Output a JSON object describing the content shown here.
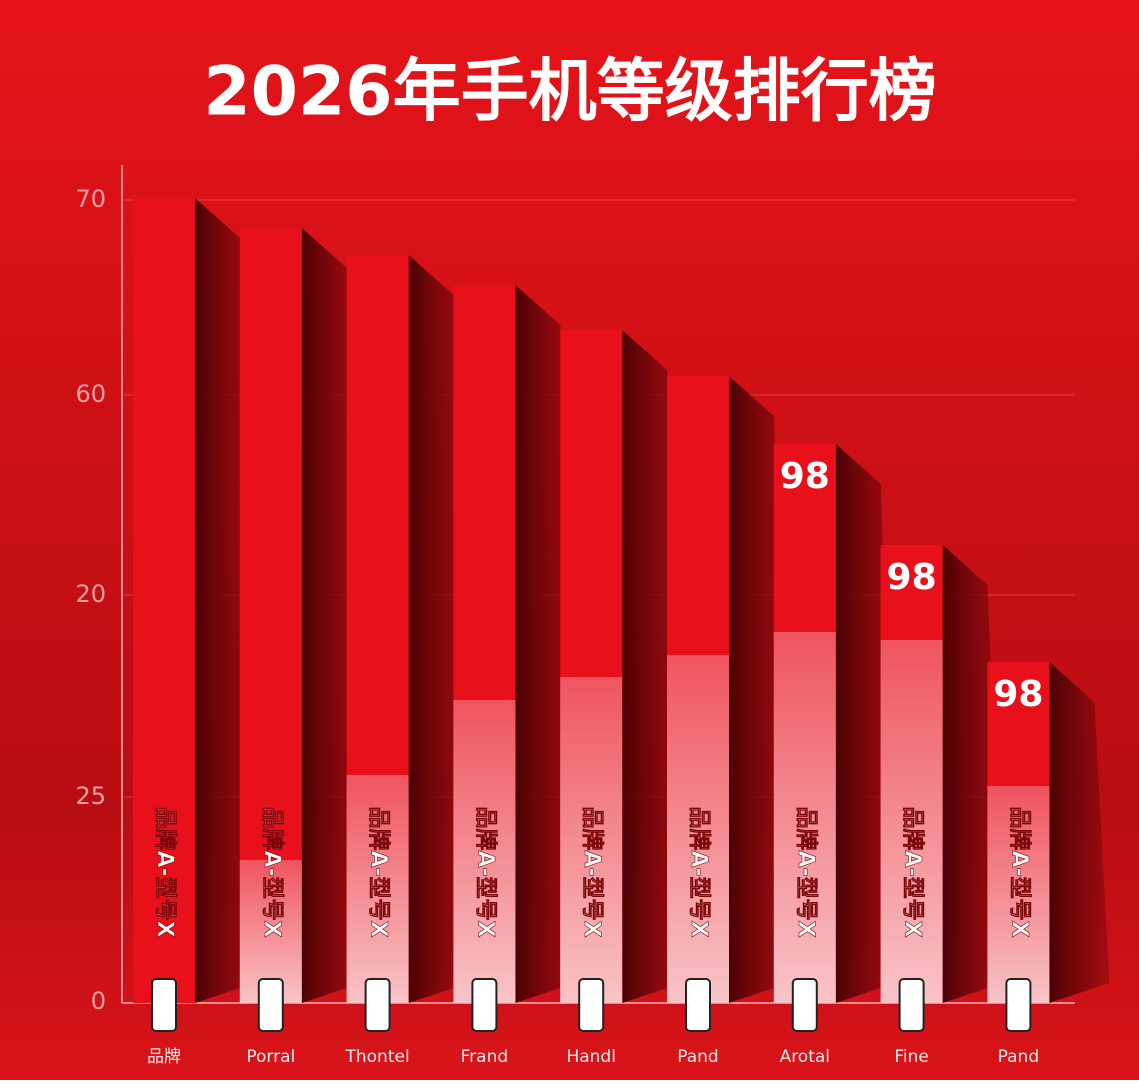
{
  "title": "2026年手机等级排行榜",
  "axis_labels": [
    "70",
    "60",
    "20",
    "25",
    "0"
  ],
  "bars": [
    {
      "label": "品牌A-型号X",
      "name": "品牌"
    },
    {
      "label": "品牌A-型号X",
      "name": "Porral"
    },
    {
      "label": "品牌A-型号X",
      "name": "Thontel"
    },
    {
      "label": "品牌A-型号X",
      "name": "Frand"
    },
    {
      "label": "品牌A-型号X",
      "name": "Handl"
    },
    {
      "label": "品牌A-型号X",
      "name": "Pand"
    },
    {
      "label": "品牌A-型号X",
      "name": "Arotal",
      "value_label": "98"
    },
    {
      "label": "品牌A-型号X",
      "name": "Fine",
      "value_label": "98"
    },
    {
      "label": "品牌A-型号X",
      "name": "Pand",
      "value_label": "98"
    }
  ]
}
